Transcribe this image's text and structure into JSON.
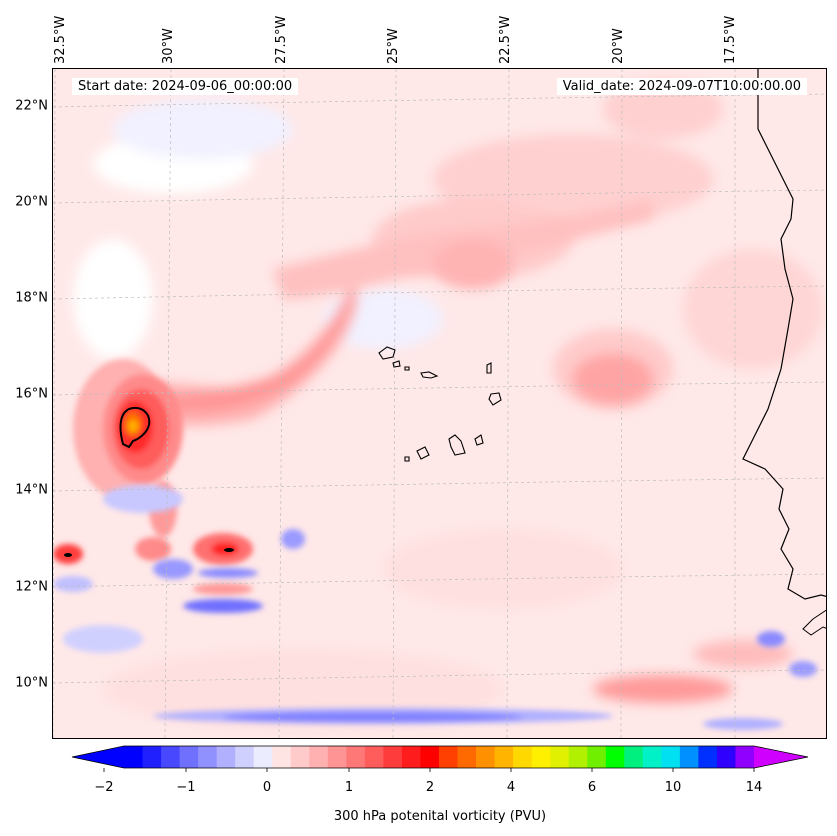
{
  "map": {
    "header": {
      "start_label": "Start date: 2024-09-06_00:00:00",
      "valid_label": "Valid_date: 2024-09-07T10:00:00.00"
    },
    "longitude_labels": [
      "32.5°W",
      "30°W",
      "27.5°W",
      "25°W",
      "22.5°W",
      "20°W",
      "17.5°W"
    ],
    "latitude_labels": [
      "22°N",
      "20°N",
      "18°N",
      "16°N",
      "14°N",
      "12°N",
      "10°N"
    ],
    "variable": "300 hPa potential vorticity",
    "colorbar": {
      "label": "300 hPa potenital vorticity (PVU)",
      "tick_labels": [
        "−2",
        "−1",
        "0",
        "1",
        "2",
        "4",
        "6",
        "10",
        "14"
      ],
      "colors": [
        "#0000ff",
        "#2020ff",
        "#4848ff",
        "#7070ff",
        "#9090ff",
        "#b0b0ff",
        "#d0d0ff",
        "#ececff",
        "#ffe4e4",
        "#ffcaca",
        "#ffb0b0",
        "#ff9494",
        "#ff7878",
        "#ff5c5c",
        "#ff3c3c",
        "#ff1c1c",
        "#ff0000",
        "#ff4000",
        "#ff6a00",
        "#ff9000",
        "#ffb400",
        "#ffd800",
        "#fff000",
        "#e0f000",
        "#b0f000",
        "#70f000",
        "#00ff00",
        "#00f080",
        "#00f0c8",
        "#00e0f0",
        "#0090ff",
        "#0030ff",
        "#3000ff",
        "#9000ff"
      ],
      "under_color": "#0000ff",
      "over_color": "#d000ff"
    }
  }
}
